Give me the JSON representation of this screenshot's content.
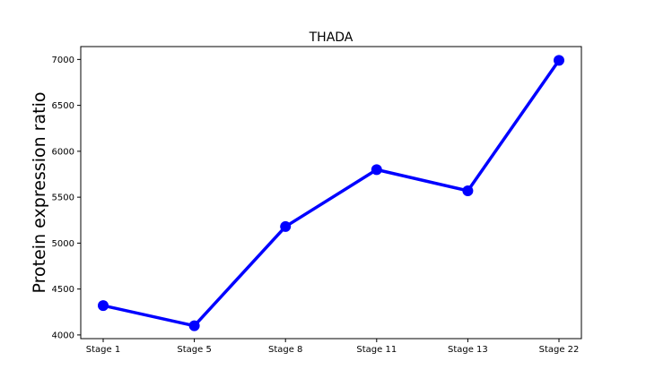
{
  "chart_data": {
    "type": "line",
    "title": "THADA",
    "xlabel": "",
    "ylabel": "Protein expression ratio",
    "categories": [
      "Stage 1",
      "Stage 5",
      "Stage 8",
      "Stage 11",
      "Stage 13",
      "Stage 22"
    ],
    "series": [
      {
        "values": [
          4320,
          4100,
          5180,
          5800,
          5570,
          6990
        ],
        "color": "#0000ff",
        "marker": "circle"
      }
    ],
    "yticks": [
      4000,
      4500,
      5000,
      5500,
      6000,
      6500,
      7000
    ],
    "ylim": [
      3960,
      7140
    ],
    "grid": false,
    "legend": false
  }
}
